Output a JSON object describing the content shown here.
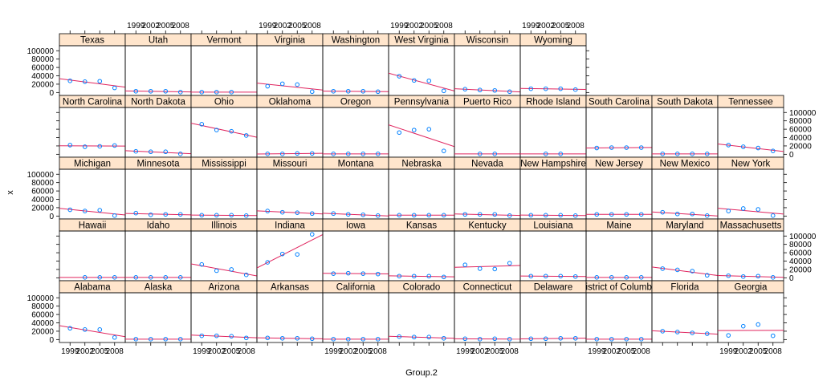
{
  "chart_data": {
    "type": "scatter",
    "layout": "lattice trellis, 11 columns x 5 rows",
    "xlabel": "Group.2",
    "ylabel": "x",
    "x_ticks": [
      1999,
      2002,
      2005,
      2008
    ],
    "x_tick_labels": [
      "1999",
      "2002",
      "2005",
      "2008"
    ],
    "xlim": [
      1997.5,
      2009.5
    ],
    "y_ticks": [
      0,
      20000,
      40000,
      60000,
      80000,
      100000
    ],
    "y_tick_labels": [
      "0",
      "20000",
      "40000",
      "60000",
      "80000",
      "100000"
    ],
    "ylim": [
      -7000,
      112000
    ],
    "x": [
      1999,
      2002,
      2005,
      2008
    ],
    "point_color": "#0080ff",
    "line_color": "#e0245e",
    "strip_color": "#ffe5cc",
    "rows": [
      [
        {
          "name": "Texas",
          "y": [
            28000,
            26000,
            27000,
            11000
          ]
        },
        {
          "name": "Utah",
          "y": [
            3000,
            3000,
            3000,
            1000
          ]
        },
        {
          "name": "Vermont",
          "y": [
            1000,
            1000,
            1000,
            null
          ]
        },
        {
          "name": "Virginia",
          "y": [
            15000,
            21000,
            19000,
            2000
          ]
        },
        {
          "name": "Washington",
          "y": [
            3000,
            3000,
            3000,
            2000
          ]
        },
        {
          "name": "West Virginia",
          "y": [
            39000,
            29000,
            28000,
            4000
          ]
        },
        {
          "name": "Wisconsin",
          "y": [
            8000,
            6000,
            5000,
            2000
          ]
        },
        {
          "name": "Wyoming",
          "y": [
            9000,
            9000,
            9000,
            7000
          ]
        }
      ],
      [
        {
          "name": "North Carolina",
          "y": [
            22000,
            18000,
            19000,
            21000
          ]
        },
        {
          "name": "North Dakota",
          "y": [
            7000,
            6000,
            6000,
            1000
          ]
        },
        {
          "name": "Ohio",
          "y": [
            72000,
            58000,
            55000,
            45000
          ]
        },
        {
          "name": "Oklahoma",
          "y": [
            1000,
            1000,
            2000,
            2000
          ]
        },
        {
          "name": "Oregon",
          "y": [
            1000,
            1000,
            1000,
            1000
          ]
        },
        {
          "name": "Pennsylvania",
          "y": [
            52000,
            58000,
            60000,
            8000
          ]
        },
        {
          "name": "Puerto Rico",
          "y": [
            null,
            1000,
            1000,
            null
          ]
        },
        {
          "name": "Rhode Island",
          "y": [
            null,
            1000,
            1000,
            null
          ]
        },
        {
          "name": "South Carolina",
          "y": [
            15000,
            16000,
            16000,
            16000
          ]
        },
        {
          "name": "South Dakota",
          "y": [
            1000,
            1000,
            1000,
            1000
          ]
        },
        {
          "name": "Tennessee",
          "y": [
            22000,
            18000,
            15000,
            8000
          ]
        }
      ],
      [
        {
          "name": "Michigan",
          "y": [
            15000,
            12000,
            14000,
            1000
          ]
        },
        {
          "name": "Minnesota",
          "y": [
            7000,
            3000,
            4000,
            4000
          ]
        },
        {
          "name": "Mississippi",
          "y": [
            2000,
            2000,
            2000,
            1000
          ]
        },
        {
          "name": "Missouri",
          "y": [
            12000,
            9000,
            8000,
            6000
          ]
        },
        {
          "name": "Montana",
          "y": [
            6000,
            4000,
            3000,
            1000
          ]
        },
        {
          "name": "Nebraska",
          "y": [
            2000,
            2000,
            2000,
            2000
          ]
        },
        {
          "name": "Nevada",
          "y": [
            4000,
            4000,
            4000,
            1000
          ]
        },
        {
          "name": "New Hampshire",
          "y": [
            2000,
            2000,
            2000,
            1000
          ]
        },
        {
          "name": "New Jersey",
          "y": [
            4000,
            4000,
            4000,
            4000
          ]
        },
        {
          "name": "New Mexico",
          "y": [
            9000,
            5000,
            5000,
            1000
          ]
        },
        {
          "name": "New York",
          "y": [
            12000,
            18000,
            16000,
            1000
          ]
        }
      ],
      [
        {
          "name": "Hawaii",
          "y": [
            null,
            1000,
            1000,
            1000
          ]
        },
        {
          "name": "Idaho",
          "y": [
            1000,
            1000,
            1000,
            1000
          ]
        },
        {
          "name": "Illinois",
          "y": [
            32000,
            17000,
            20000,
            7000
          ]
        },
        {
          "name": "Indiana",
          "y": [
            37000,
            57000,
            56000,
            104000
          ]
        },
        {
          "name": "Iowa",
          "y": [
            10000,
            11000,
            10000,
            9000
          ]
        },
        {
          "name": "Kansas",
          "y": [
            4000,
            4000,
            4000,
            2000
          ]
        },
        {
          "name": "Kentucky",
          "y": [
            31000,
            22000,
            21000,
            35000
          ]
        },
        {
          "name": "Louisiana",
          "y": [
            4000,
            4000,
            4000,
            3000
          ]
        },
        {
          "name": "Maine",
          "y": [
            1000,
            1000,
            1000,
            1000
          ]
        },
        {
          "name": "Maryland",
          "y": [
            22000,
            19000,
            16000,
            6000
          ]
        },
        {
          "name": "Massachusetts",
          "y": [
            5000,
            3000,
            4000,
            1000
          ]
        }
      ],
      [
        {
          "name": "Alabama",
          "y": [
            27000,
            24000,
            24000,
            5000
          ]
        },
        {
          "name": "Alaska",
          "y": [
            1000,
            1000,
            1000,
            1000
          ]
        },
        {
          "name": "Arizona",
          "y": [
            9000,
            9000,
            8000,
            4000
          ]
        },
        {
          "name": "Arkansas",
          "y": [
            4000,
            3000,
            3000,
            2000
          ]
        },
        {
          "name": "California",
          "y": [
            1000,
            1000,
            1000,
            1000
          ]
        },
        {
          "name": "Colorado",
          "y": [
            7000,
            6000,
            6000,
            3000
          ]
        },
        {
          "name": "Connecticut",
          "y": [
            2000,
            1000,
            2000,
            1000
          ]
        },
        {
          "name": "Delaware",
          "y": [
            2000,
            2000,
            3000,
            3000
          ]
        },
        {
          "name": "District of Columbia",
          "y": [
            1000,
            1000,
            1000,
            1000
          ]
        },
        {
          "name": "Florida",
          "y": [
            20000,
            18000,
            16000,
            14000
          ]
        },
        {
          "name": "Georgia",
          "y": [
            10000,
            32000,
            36000,
            9000
          ]
        }
      ]
    ]
  }
}
